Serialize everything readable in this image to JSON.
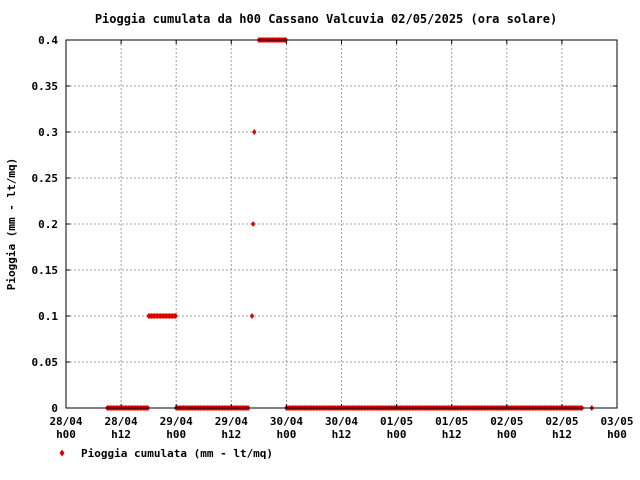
{
  "chart_data": {
    "type": "scatter",
    "title": "Pioggia cumulata da h00 Cassano Valcuvia 02/05/2025 (ora solare)",
    "ylabel": "Pioggia (mm - lt/mq)",
    "xlabel": "",
    "ylim": [
      0,
      0.4
    ],
    "y_ticks": [
      "0",
      "0.05",
      "0.1",
      "0.15",
      "0.2",
      "0.25",
      "0.3",
      "0.35",
      "0.4"
    ],
    "x_ticks": [
      {
        "date": "28/04",
        "hour": "h00"
      },
      {
        "date": "28/04",
        "hour": "h12"
      },
      {
        "date": "29/04",
        "hour": "h00"
      },
      {
        "date": "29/04",
        "hour": "h12"
      },
      {
        "date": "30/04",
        "hour": "h00"
      },
      {
        "date": "30/04",
        "hour": "h12"
      },
      {
        "date": "01/05",
        "hour": "h00"
      },
      {
        "date": "01/05",
        "hour": "h12"
      },
      {
        "date": "02/05",
        "hour": "h00"
      },
      {
        "date": "02/05",
        "hour": "h12"
      },
      {
        "date": "03/05",
        "hour": "h00"
      }
    ],
    "grid": true,
    "legend_position": "bottom-left",
    "series": [
      {
        "name": "Pioggia cumulata (mm - lt/mq)",
        "color": "#dd0000",
        "marker": "diamond",
        "segments": [
          {
            "from": "28/04 09:00",
            "to": "28/04 18:00",
            "value": 0.0
          },
          {
            "from": "28/04 18:00",
            "to": "29/04 00:00",
            "value": 0.1
          },
          {
            "from": "29/04 00:00",
            "to": "29/04 16:00",
            "value": 0.0
          },
          {
            "from": "29/04 18:00",
            "to": "30/04 00:00",
            "value": 0.4
          },
          {
            "from": "30/04 00:00",
            "to": "02/05 16:30",
            "value": 0.0
          }
        ],
        "points": [
          {
            "x": "29/04 16:30",
            "y": 0.1
          },
          {
            "x": "29/04 16:45",
            "y": 0.2
          },
          {
            "x": "29/04 17:00",
            "y": 0.3
          },
          {
            "x": "02/05 18:30",
            "y": 0.0
          }
        ]
      }
    ]
  }
}
